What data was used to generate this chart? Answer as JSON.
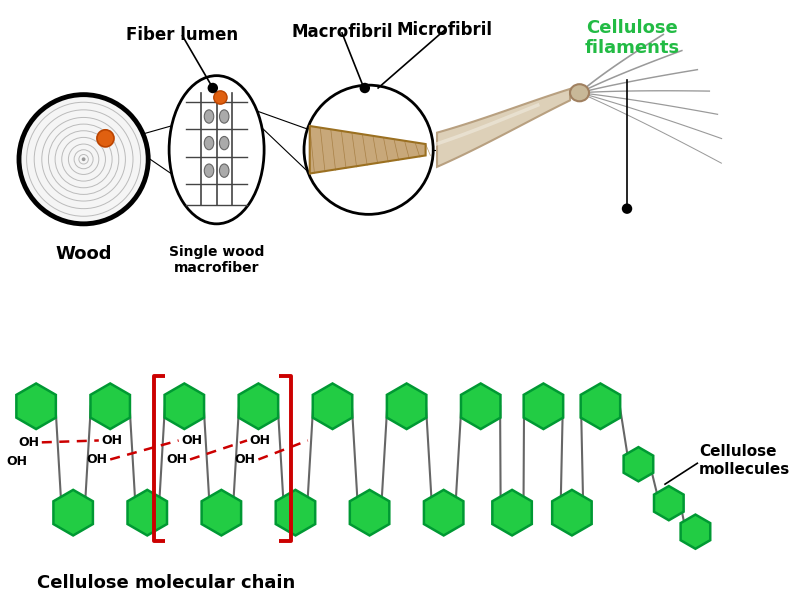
{
  "bg_color": "#ffffff",
  "fig_width": 8.0,
  "fig_height": 6.03,
  "labels": {
    "fiber_lumen": "Fiber lumen",
    "macrofibril": "Macrofibril",
    "microfibril": "Microfibril",
    "cellulose_filaments": "Cellulose\nfilaments",
    "wood": "Wood",
    "single_wood": "Single wood\nmacrofiber",
    "cellulose_molecules": "Cellulose\nmollecules",
    "cellulose_chain": "Cellulose molecular chain"
  },
  "colors": {
    "green": "#22cc44",
    "dark_green": "#009933",
    "green_label": "#22bb44",
    "orange_dot": "#e06010",
    "black": "#000000",
    "red": "#cc0000",
    "wood_fill": "#c8a87a",
    "gray": "#777777",
    "light_gray": "#e8e8e8",
    "bond_gray": "#666666",
    "filament_fill": "#ddd0b8",
    "filament_edge": "#b8a080"
  }
}
